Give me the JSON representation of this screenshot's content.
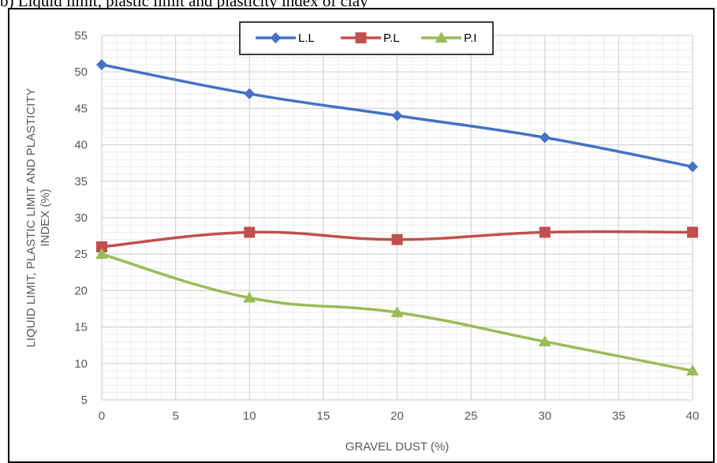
{
  "caption": {
    "text": "b) Liquid limit, plastic limit and plasticity index of clay"
  },
  "chart_data": {
    "type": "line",
    "x": [
      0,
      10,
      20,
      30,
      40
    ],
    "series": [
      {
        "name": "L.L",
        "values": [
          51,
          47,
          44,
          41,
          37
        ],
        "color": "#4472C4",
        "marker": "diamond"
      },
      {
        "name": "P.L",
        "values": [
          26,
          28,
          27,
          28,
          28
        ],
        "color": "#C0504D",
        "marker": "square"
      },
      {
        "name": "P.I",
        "values": [
          25,
          19,
          17,
          13,
          9
        ],
        "color": "#9BBB59",
        "marker": "triangle"
      }
    ],
    "xlabel": "GRAVEL DUST (%)",
    "ylabel_line1": "LIQUID LIMIT,  PLASTIC LIMIT  AND  PLASTICITY",
    "ylabel_line2": "INDEX (%)",
    "xlim": [
      0,
      40
    ],
    "ylim": [
      5,
      55
    ],
    "xticks": [
      "0",
      "5",
      "10",
      "15",
      "20",
      "25",
      "30",
      "35",
      "40"
    ],
    "yticks": [
      "5",
      "10",
      "15",
      "20",
      "25",
      "30",
      "35",
      "40",
      "45",
      "50",
      "55"
    ],
    "grid": true,
    "minor_grid": true,
    "legend_position": "top-center",
    "smooth": true
  }
}
